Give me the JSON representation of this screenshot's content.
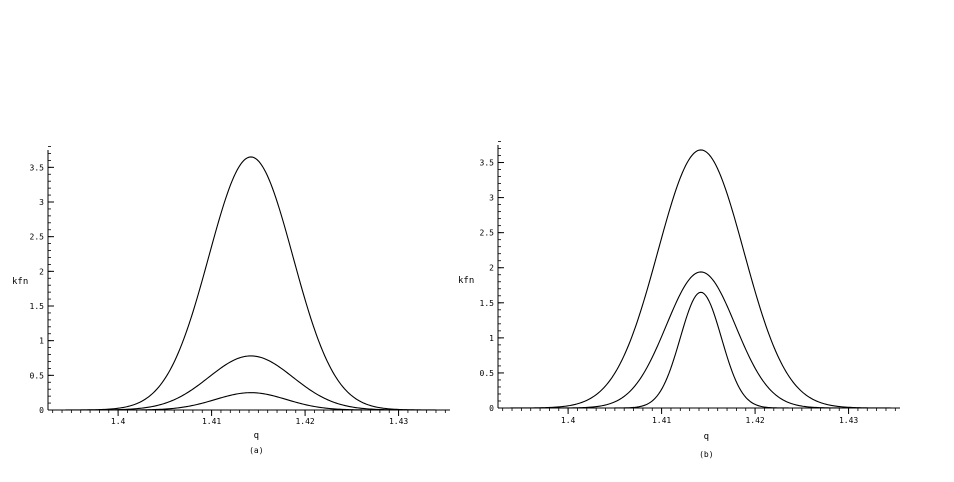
{
  "chart_data": [
    {
      "type": "line",
      "caption": "(a)",
      "xlabel": "q",
      "ylabel": "kfn",
      "xlim": [
        1.3925,
        1.4355
      ],
      "ylim": [
        0,
        3.75
      ],
      "xticks": [
        1.4,
        1.41,
        1.42,
        1.43
      ],
      "xtick_labels": [
        "1.4",
        "1.41",
        "1.42",
        "1.43"
      ],
      "yticks": [
        0,
        0.5,
        1,
        1.5,
        2,
        2.5,
        3,
        3.5
      ],
      "ytick_labels": [
        "0",
        "0.5",
        "1",
        "1.5",
        "2",
        "2.5",
        "3",
        "3.5"
      ],
      "grid": false,
      "series": [
        {
          "center": 1.4142,
          "peak": 3.65,
          "sigma": 0.0045
        },
        {
          "center": 1.4142,
          "peak": 0.78,
          "sigma": 0.0045
        },
        {
          "center": 1.4142,
          "peak": 0.25,
          "sigma": 0.0038
        }
      ]
    },
    {
      "type": "line",
      "caption": "(b)",
      "xlabel": "q",
      "ylabel": "kfn",
      "xlim": [
        1.3925,
        1.4355
      ],
      "ylim": [
        0,
        3.75
      ],
      "xticks": [
        1.4,
        1.41,
        1.42,
        1.43
      ],
      "xtick_labels": [
        "1.4",
        "1.41",
        "1.42",
        "1.43"
      ],
      "yticks": [
        0,
        0.5,
        1,
        1.5,
        2,
        2.5,
        3,
        3.5
      ],
      "ytick_labels": [
        "0",
        "0.5",
        "1",
        "1.5",
        "2",
        "2.5",
        "3",
        "3.5"
      ],
      "grid": false,
      "series": [
        {
          "center": 1.4142,
          "peak": 3.68,
          "sigma": 0.0046
        },
        {
          "center": 1.4142,
          "peak": 1.94,
          "sigma": 0.0037
        },
        {
          "center": 1.4142,
          "peak": 1.65,
          "sigma": 0.0022
        }
      ]
    }
  ]
}
